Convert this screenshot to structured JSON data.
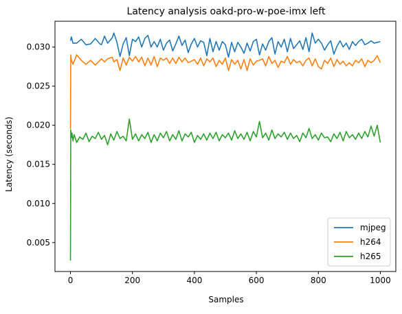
{
  "chart_data": {
    "type": "line",
    "title": "Latency analysis oakd-pro-w-poe-imx left",
    "xlabel": "Samples",
    "ylabel": "Latency (seconds)",
    "xlim": [
      -50,
      1050
    ],
    "ylim": [
      0.0013,
      0.0333
    ],
    "x_ticks": [
      0,
      200,
      400,
      600,
      800,
      1000
    ],
    "x_tick_labels": [
      "0",
      "200",
      "400",
      "600",
      "800",
      "1000"
    ],
    "y_ticks": [
      0.005,
      0.01,
      0.015,
      0.02,
      0.025,
      0.03
    ],
    "y_tick_labels": [
      "0.005",
      "0.010",
      "0.015",
      "0.020",
      "0.025",
      "0.030"
    ],
    "grid": false,
    "legend_position": "lower right",
    "series": [
      {
        "name": "mjpeg",
        "color": "#1f77b4",
        "x": [
          0,
          3,
          8,
          20,
          35,
          50,
          65,
          80,
          95,
          100,
          110,
          120,
          135,
          140,
          150,
          160,
          170,
          180,
          190,
          200,
          210,
          220,
          230,
          240,
          250,
          260,
          270,
          280,
          290,
          300,
          310,
          320,
          330,
          340,
          350,
          360,
          370,
          380,
          390,
          400,
          410,
          420,
          430,
          440,
          450,
          460,
          470,
          480,
          490,
          500,
          510,
          520,
          530,
          540,
          550,
          560,
          570,
          580,
          590,
          600,
          610,
          620,
          630,
          640,
          650,
          660,
          670,
          680,
          690,
          700,
          710,
          720,
          730,
          740,
          750,
          760,
          770,
          780,
          790,
          800,
          810,
          820,
          830,
          840,
          850,
          860,
          870,
          880,
          890,
          900,
          910,
          920,
          930,
          940,
          950,
          960,
          970,
          980,
          990,
          1000
        ],
        "y": [
          0.0308,
          0.0313,
          0.0305,
          0.0305,
          0.031,
          0.0303,
          0.0304,
          0.0311,
          0.0304,
          0.0303,
          0.0314,
          0.0305,
          0.0312,
          0.0318,
          0.0306,
          0.0288,
          0.0304,
          0.0312,
          0.0289,
          0.031,
          0.0307,
          0.0313,
          0.03,
          0.0311,
          0.0315,
          0.03,
          0.0307,
          0.03,
          0.031,
          0.0296,
          0.0305,
          0.0309,
          0.0295,
          0.0304,
          0.0314,
          0.0302,
          0.0309,
          0.0293,
          0.0304,
          0.0311,
          0.03,
          0.0308,
          0.0306,
          0.0289,
          0.0311,
          0.0294,
          0.0307,
          0.0296,
          0.0307,
          0.0303,
          0.0287,
          0.0306,
          0.0294,
          0.0306,
          0.03,
          0.0292,
          0.0305,
          0.0295,
          0.0307,
          0.031,
          0.029,
          0.0304,
          0.0296,
          0.0307,
          0.0312,
          0.0291,
          0.0307,
          0.03,
          0.031,
          0.0294,
          0.0311,
          0.0298,
          0.0303,
          0.0308,
          0.0297,
          0.0312,
          0.0294,
          0.0318,
          0.0305,
          0.031,
          0.0305,
          0.0296,
          0.0303,
          0.0308,
          0.0291,
          0.0301,
          0.0308,
          0.03,
          0.0305,
          0.0297,
          0.0307,
          0.0302,
          0.0307,
          0.031,
          0.0303,
          0.0305,
          0.0308,
          0.0305,
          0.0306,
          0.0307
        ]
      },
      {
        "name": "h264",
        "color": "#ff7f0e",
        "x": [
          0,
          1,
          3,
          8,
          20,
          35,
          50,
          65,
          80,
          95,
          100,
          110,
          120,
          135,
          140,
          150,
          160,
          170,
          180,
          190,
          200,
          210,
          220,
          230,
          240,
          250,
          260,
          270,
          280,
          290,
          300,
          310,
          320,
          330,
          340,
          350,
          360,
          370,
          380,
          390,
          400,
          410,
          420,
          430,
          440,
          450,
          460,
          470,
          480,
          490,
          500,
          510,
          520,
          530,
          540,
          550,
          560,
          570,
          580,
          590,
          600,
          610,
          620,
          630,
          640,
          650,
          660,
          670,
          680,
          690,
          700,
          710,
          720,
          730,
          740,
          750,
          760,
          770,
          780,
          790,
          800,
          810,
          820,
          830,
          840,
          850,
          860,
          870,
          880,
          890,
          900,
          910,
          920,
          930,
          940,
          950,
          960,
          970,
          980,
          990,
          1000
        ],
        "y": [
          0.0195,
          0.029,
          0.0283,
          0.0278,
          0.029,
          0.0283,
          0.0278,
          0.0283,
          0.0277,
          0.0283,
          0.0285,
          0.0281,
          0.0285,
          0.0287,
          0.0281,
          0.0284,
          0.027,
          0.0286,
          0.0277,
          0.0287,
          0.0282,
          0.0288,
          0.0281,
          0.0287,
          0.0276,
          0.0286,
          0.0277,
          0.0288,
          0.0275,
          0.0286,
          0.0283,
          0.0286,
          0.0279,
          0.0286,
          0.0279,
          0.0287,
          0.0281,
          0.0286,
          0.028,
          0.0282,
          0.0284,
          0.0278,
          0.0286,
          0.0276,
          0.0285,
          0.0281,
          0.0286,
          0.0275,
          0.0283,
          0.0278,
          0.0286,
          0.027,
          0.0284,
          0.0278,
          0.0283,
          0.0272,
          0.0284,
          0.027,
          0.0285,
          0.0277,
          0.0282,
          0.0283,
          0.0285,
          0.0276,
          0.0288,
          0.0279,
          0.0283,
          0.0274,
          0.0282,
          0.028,
          0.0288,
          0.0278,
          0.0284,
          0.028,
          0.0282,
          0.0276,
          0.0283,
          0.0286,
          0.0276,
          0.0285,
          0.0275,
          0.0272,
          0.0283,
          0.0279,
          0.0286,
          0.0275,
          0.0284,
          0.0278,
          0.0282,
          0.0276,
          0.028,
          0.0276,
          0.0283,
          0.028,
          0.0285,
          0.0275,
          0.0283,
          0.028,
          0.0283,
          0.0289,
          0.028
        ]
      },
      {
        "name": "h265",
        "color": "#2ca02c",
        "x": [
          0,
          1,
          3,
          5,
          8,
          12,
          20,
          30,
          40,
          50,
          60,
          70,
          80,
          90,
          100,
          110,
          120,
          130,
          140,
          150,
          160,
          170,
          180,
          190,
          200,
          210,
          220,
          230,
          240,
          250,
          260,
          270,
          280,
          290,
          300,
          310,
          320,
          330,
          340,
          350,
          360,
          370,
          380,
          390,
          400,
          410,
          420,
          430,
          440,
          450,
          460,
          470,
          480,
          490,
          500,
          510,
          520,
          530,
          540,
          550,
          560,
          570,
          580,
          590,
          600,
          610,
          620,
          630,
          640,
          650,
          660,
          670,
          680,
          690,
          700,
          710,
          720,
          730,
          740,
          750,
          760,
          770,
          780,
          790,
          800,
          810,
          820,
          830,
          840,
          850,
          860,
          870,
          880,
          890,
          900,
          910,
          920,
          930,
          940,
          950,
          960,
          970,
          980,
          990,
          1000
        ],
        "y": [
          0.0027,
          0.0194,
          0.0184,
          0.019,
          0.018,
          0.0188,
          0.0178,
          0.0185,
          0.0182,
          0.019,
          0.0179,
          0.0186,
          0.0183,
          0.0191,
          0.0182,
          0.0187,
          0.0175,
          0.0189,
          0.0181,
          0.0192,
          0.0183,
          0.0186,
          0.018,
          0.0208,
          0.0182,
          0.0189,
          0.018,
          0.0188,
          0.0183,
          0.0191,
          0.0178,
          0.0188,
          0.018,
          0.019,
          0.0184,
          0.0192,
          0.018,
          0.0188,
          0.0182,
          0.0193,
          0.018,
          0.0189,
          0.0185,
          0.0191,
          0.0178,
          0.0187,
          0.0182,
          0.0189,
          0.0181,
          0.019,
          0.0183,
          0.0191,
          0.018,
          0.0188,
          0.0184,
          0.019,
          0.0181,
          0.0193,
          0.0183,
          0.0189,
          0.0182,
          0.0191,
          0.018,
          0.0192,
          0.0185,
          0.0205,
          0.0184,
          0.019,
          0.0181,
          0.0194,
          0.0183,
          0.0189,
          0.0185,
          0.0191,
          0.0182,
          0.019,
          0.0183,
          0.0187,
          0.0179,
          0.019,
          0.0184,
          0.0196,
          0.0183,
          0.0188,
          0.0181,
          0.019,
          0.0184,
          0.0185,
          0.0179,
          0.0189,
          0.0183,
          0.0191,
          0.018,
          0.0192,
          0.0184,
          0.0188,
          0.0182,
          0.019,
          0.0183,
          0.0192,
          0.0185,
          0.0199,
          0.0186,
          0.02,
          0.0178
        ]
      }
    ]
  }
}
